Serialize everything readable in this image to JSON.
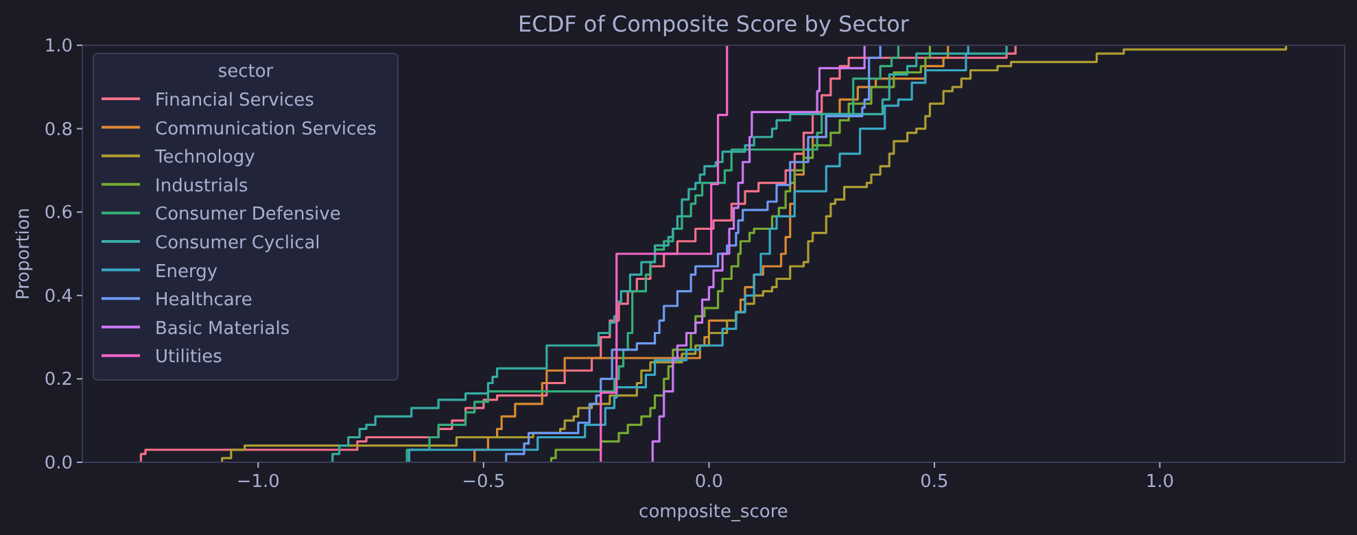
{
  "chart_data": {
    "type": "step",
    "title": "ECDF of Composite Score by Sector",
    "xlabel": "composite_score",
    "ylabel": "Proportion",
    "legend_title": "sector",
    "legend": "top left",
    "grid": false,
    "xlim": [
      -1.39,
      1.41
    ],
    "ylim": [
      0,
      1
    ],
    "xticks": [
      {
        "value": -1,
        "label": "−1.0"
      },
      {
        "value": -0.5,
        "label": "−0.5"
      },
      {
        "value": 0,
        "label": "0.0"
      },
      {
        "value": 0.5,
        "label": "0.5"
      },
      {
        "value": 1,
        "label": "1.0"
      }
    ],
    "yticks": [
      {
        "value": 0,
        "label": "0.0"
      },
      {
        "value": 0.2,
        "label": "0.2"
      },
      {
        "value": 0.4,
        "label": "0.4"
      },
      {
        "value": 0.6,
        "label": "0.6"
      },
      {
        "value": 0.8,
        "label": "0.8"
      },
      {
        "value": 1,
        "label": "1.0"
      }
    ],
    "series": [
      {
        "name": "Financial Services",
        "color": "#f77189",
        "x": [
          -1.26,
          -1.26,
          -1.25,
          -0.78,
          -0.76,
          -0.6,
          -0.57,
          -0.54,
          -0.5,
          -0.47,
          -0.36,
          -0.32,
          -0.26,
          -0.24,
          -0.22,
          -0.2,
          -0.18,
          -0.16,
          -0.13,
          -0.1,
          -0.07,
          -0.03,
          0.01,
          0.05,
          0.08,
          0.11,
          0.17,
          0.19,
          0.21,
          0.23,
          0.25,
          0.27,
          0.29,
          0.31,
          0.66,
          0.68
        ],
        "values": [
          0,
          0.02,
          0.03,
          0.05,
          0.06,
          0.08,
          0.1,
          0.13,
          0.15,
          0.16,
          0.19,
          0.22,
          0.25,
          0.3,
          0.34,
          0.38,
          0.41,
          0.44,
          0.47,
          0.5,
          0.53,
          0.56,
          0.58,
          0.62,
          0.65,
          0.67,
          0.7,
          0.74,
          0.79,
          0.84,
          0.88,
          0.92,
          0.95,
          0.97,
          0.98,
          1
        ]
      },
      {
        "name": "Communication Services",
        "color": "#dc8932",
        "x": [
          -0.52,
          -0.52,
          -0.49,
          -0.47,
          -0.46,
          -0.43,
          -0.37,
          -0.36,
          -0.32,
          -0.02,
          -0.01,
          0,
          0.06,
          0.07,
          0.08,
          0.1,
          0.12,
          0.16,
          0.17,
          0.18,
          0.19,
          0.21,
          0.23,
          0.26,
          0.29,
          0.33,
          0.37,
          0.48,
          0.52,
          0.53
        ],
        "values": [
          0,
          0.03,
          0.06,
          0.08,
          0.11,
          0.14,
          0.19,
          0.22,
          0.25,
          0.28,
          0.3,
          0.34,
          0.36,
          0.39,
          0.42,
          0.45,
          0.47,
          0.5,
          0.54,
          0.62,
          0.69,
          0.75,
          0.78,
          0.83,
          0.87,
          0.9,
          0.92,
          0.95,
          0.97,
          1
        ]
      },
      {
        "name": "Technology",
        "color": "#ae9d31",
        "x": [
          -1.08,
          -1.08,
          -1.06,
          -1.03,
          -0.56,
          -0.39,
          -0.33,
          -0.32,
          -0.3,
          -0.29,
          -0.26,
          -0.22,
          -0.16,
          -0.15,
          -0.13,
          -0.06,
          -0.03,
          0,
          0.04,
          0.06,
          0.08,
          0.1,
          0.12,
          0.14,
          0.15,
          0.18,
          0.21,
          0.22,
          0.23,
          0.26,
          0.27,
          0.28,
          0.3,
          0.35,
          0.36,
          0.38,
          0.4,
          0.41,
          0.44,
          0.46,
          0.48,
          0.49,
          0.52,
          0.54,
          0.56,
          0.58,
          0.64,
          0.67,
          0.86,
          0.92,
          1.28
        ],
        "values": [
          0,
          0.01,
          0.03,
          0.04,
          0.06,
          0.07,
          0.08,
          0.1,
          0.11,
          0.13,
          0.14,
          0.16,
          0.19,
          0.22,
          0.24,
          0.26,
          0.28,
          0.31,
          0.34,
          0.36,
          0.38,
          0.4,
          0.41,
          0.42,
          0.44,
          0.47,
          0.48,
          0.53,
          0.55,
          0.59,
          0.62,
          0.63,
          0.66,
          0.67,
          0.69,
          0.71,
          0.74,
          0.77,
          0.79,
          0.8,
          0.83,
          0.86,
          0.89,
          0.9,
          0.92,
          0.94,
          0.95,
          0.96,
          0.98,
          0.99,
          1
        ]
      },
      {
        "name": "Industrials",
        "color": "#77ab31",
        "x": [
          -0.35,
          -0.35,
          -0.34,
          -0.24,
          -0.2,
          -0.18,
          -0.15,
          -0.13,
          -0.12,
          -0.1,
          -0.09,
          -0.08,
          -0.04,
          -0.03,
          -0.01,
          0.02,
          0.03,
          0.05,
          0.065,
          0.07,
          0.09,
          0.1,
          0.14,
          0.155,
          0.17,
          0.18,
          0.19,
          0.21,
          0.23,
          0.27,
          0.29,
          0.31,
          0.36,
          0.41,
          0.47,
          0.48,
          0.49
        ],
        "values": [
          0,
          0.01,
          0.03,
          0.05,
          0.07,
          0.09,
          0.11,
          0.13,
          0.16,
          0.2,
          0.23,
          0.27,
          0.31,
          0.35,
          0.37,
          0.41,
          0.44,
          0.47,
          0.5,
          0.53,
          0.55,
          0.56,
          0.59,
          0.61,
          0.65,
          0.67,
          0.7,
          0.73,
          0.76,
          0.79,
          0.82,
          0.86,
          0.9,
          0.935,
          0.95,
          0.97,
          1
        ]
      },
      {
        "name": "Consumer Defensive",
        "color": "#33b07a",
        "x": [
          -0.67,
          -0.67,
          -0.62,
          -0.6,
          -0.54,
          -0.52,
          -0.49,
          -0.21,
          -0.2,
          -0.19,
          -0.18,
          -0.17,
          -0.14,
          -0.13,
          -0.12,
          -0.1,
          -0.08,
          -0.06,
          -0.04,
          -0.03,
          -0.015,
          0.035,
          0.05,
          0.24,
          0.25,
          0.32,
          0.38,
          0.405,
          0.42
        ],
        "values": [
          0,
          0.03,
          0.06,
          0.09,
          0.12,
          0.145,
          0.17,
          0.2,
          0.23,
          0.27,
          0.31,
          0.41,
          0.45,
          0.48,
          0.51,
          0.53,
          0.56,
          0.59,
          0.62,
          0.64,
          0.67,
          0.7,
          0.75,
          0.79,
          0.835,
          0.92,
          0.95,
          0.97,
          1
        ]
      },
      {
        "name": "Consumer Cyclical",
        "color": "#36ada4",
        "x": [
          -0.835,
          -0.835,
          -0.82,
          -0.8,
          -0.775,
          -0.76,
          -0.74,
          -0.66,
          -0.6,
          -0.54,
          -0.49,
          -0.48,
          -0.47,
          -0.36,
          -0.245,
          -0.22,
          -0.21,
          -0.205,
          -0.195,
          -0.175,
          -0.15,
          -0.12,
          -0.09,
          -0.08,
          -0.07,
          -0.06,
          -0.045,
          -0.03,
          -0.02,
          -0.01,
          0.015,
          0.03,
          0.08,
          0.1,
          0.14,
          0.15,
          0.18,
          0.385,
          0.4,
          0.44,
          0.46,
          0.66
        ],
        "values": [
          0,
          0.02,
          0.04,
          0.06,
          0.08,
          0.09,
          0.11,
          0.13,
          0.15,
          0.165,
          0.19,
          0.205,
          0.225,
          0.28,
          0.31,
          0.335,
          0.35,
          0.385,
          0.41,
          0.45,
          0.48,
          0.52,
          0.54,
          0.56,
          0.59,
          0.63,
          0.655,
          0.67,
          0.69,
          0.71,
          0.72,
          0.745,
          0.76,
          0.78,
          0.8,
          0.82,
          0.835,
          0.87,
          0.93,
          0.95,
          0.98,
          1
        ]
      },
      {
        "name": "Energy",
        "color": "#38a9c5",
        "x": [
          -0.665,
          -0.665,
          -0.38,
          -0.275,
          -0.23,
          -0.21,
          -0.205,
          -0.14,
          -0.12,
          -0.05,
          -0.02,
          0.03,
          0.06,
          0.08,
          0.1,
          0.115,
          0.135,
          0.15,
          0.19,
          0.26,
          0.29,
          0.335,
          0.39,
          0.42,
          0.45,
          0.48,
          0.57,
          0.575
        ],
        "values": [
          0,
          0.03,
          0.06,
          0.09,
          0.13,
          0.155,
          0.18,
          0.21,
          0.245,
          0.27,
          0.28,
          0.32,
          0.36,
          0.4,
          0.45,
          0.5,
          0.56,
          0.59,
          0.65,
          0.71,
          0.74,
          0.8,
          0.855,
          0.87,
          0.91,
          0.94,
          0.98,
          1
        ]
      },
      {
        "name": "Healthcare",
        "color": "#6e9bf4",
        "x": [
          -0.45,
          -0.45,
          -0.41,
          -0.4,
          -0.29,
          -0.265,
          -0.25,
          -0.24,
          -0.215,
          -0.16,
          -0.12,
          -0.11,
          -0.1,
          -0.07,
          -0.04,
          -0.03,
          0.02,
          0.04,
          0.06,
          0.065,
          0.075,
          0.13,
          0.15,
          0.18,
          0.22,
          0.26,
          0.34,
          0.345,
          0.355,
          0.38
        ],
        "values": [
          0,
          0.02,
          0.045,
          0.07,
          0.095,
          0.14,
          0.16,
          0.2,
          0.27,
          0.285,
          0.31,
          0.34,
          0.375,
          0.41,
          0.45,
          0.47,
          0.5,
          0.52,
          0.55,
          0.58,
          0.605,
          0.625,
          0.665,
          0.72,
          0.78,
          0.83,
          0.85,
          0.87,
          0.97,
          1
        ]
      },
      {
        "name": "Basic Materials",
        "color": "#cc7af4",
        "x": [
          -0.125,
          -0.125,
          -0.11,
          -0.1,
          -0.08,
          -0.07,
          -0.05,
          -0.03,
          -0.015,
          0,
          0.01,
          0.03,
          0.045,
          0.055,
          0.065,
          0.075,
          0.09,
          0.095,
          0.24,
          0.245,
          0.345
        ],
        "values": [
          0,
          0.05,
          0.11,
          0.17,
          0.25,
          0.28,
          0.31,
          0.335,
          0.39,
          0.42,
          0.46,
          0.5,
          0.56,
          0.61,
          0.67,
          0.72,
          0.78,
          0.84,
          0.89,
          0.945,
          1
        ]
      },
      {
        "name": "Utilities",
        "color": "#f565cc",
        "x": [
          -0.24,
          -0.24,
          -0.205,
          0.005,
          0.02,
          0.04
        ],
        "values": [
          0,
          0.167,
          0.5,
          0.667,
          0.833,
          1
        ]
      }
    ]
  }
}
